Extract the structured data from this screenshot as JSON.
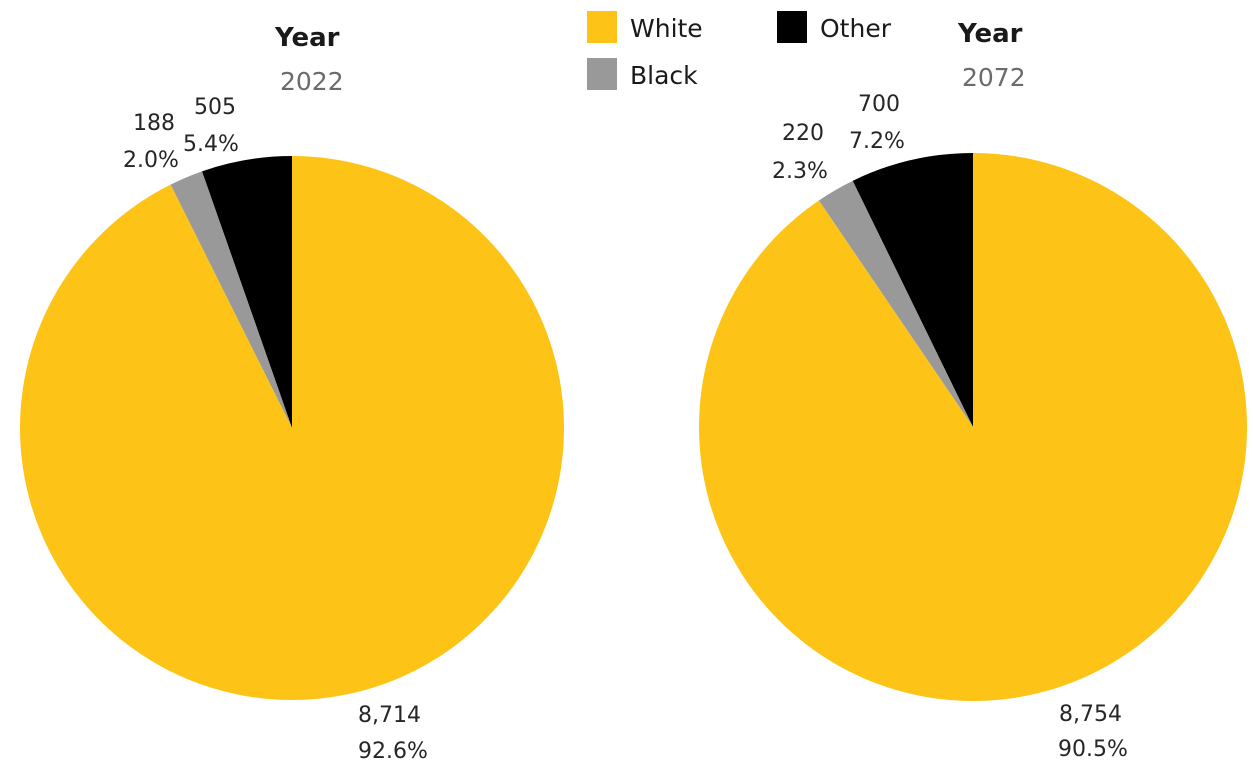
{
  "legend": {
    "items": [
      {
        "label": "White",
        "color": "#FDC417"
      },
      {
        "label": "Other",
        "color": "#000000"
      },
      {
        "label": "Black",
        "color": "#999999"
      }
    ]
  },
  "chart_data": [
    {
      "type": "pie",
      "title": "Year",
      "subtitle": "2022",
      "slices": [
        {
          "category": "Other",
          "value": 505,
          "percent_label": "5.4%",
          "color": "#000000"
        },
        {
          "category": "Black",
          "value": 188,
          "percent_label": "2.0%",
          "color": "#999999"
        },
        {
          "category": "White",
          "value": 8714,
          "percent_label": "92.6%",
          "value_label": "8,714",
          "color": "#FDC417"
        }
      ],
      "legend_position": "top-center"
    },
    {
      "type": "pie",
      "title": "Year",
      "subtitle": "2072",
      "slices": [
        {
          "category": "Other",
          "value": 700,
          "percent_label": "7.2%",
          "color": "#000000"
        },
        {
          "category": "Black",
          "value": 220,
          "percent_label": "2.3%",
          "color": "#999999"
        },
        {
          "category": "White",
          "value": 8754,
          "percent_label": "90.5%",
          "value_label": "8,754",
          "color": "#FDC417"
        }
      ],
      "legend_position": "top-center"
    }
  ]
}
